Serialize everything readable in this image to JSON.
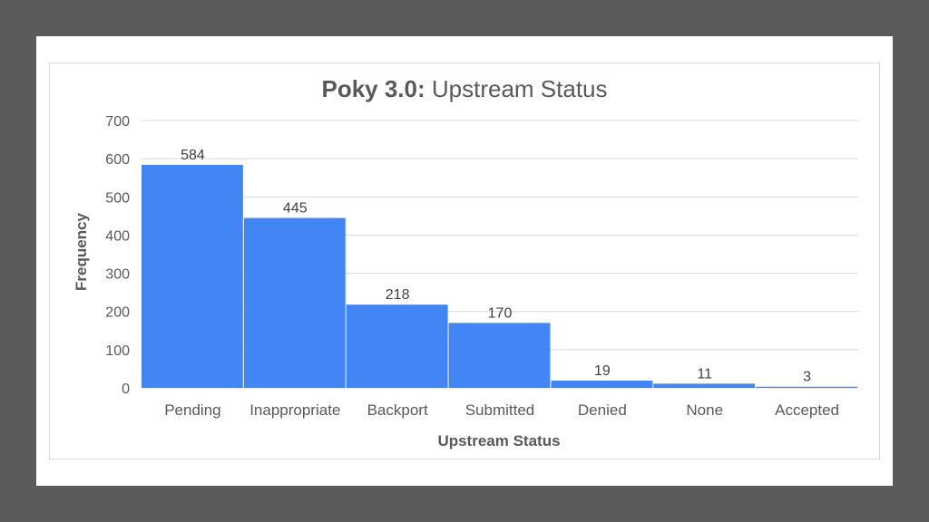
{
  "colors": {
    "background": "#5b5b5b",
    "bar": "#4285f4",
    "gridline": "#d9d9d9",
    "text": "#595959"
  },
  "chart_data": {
    "type": "bar",
    "title_bold": "Poky 3.0:",
    "title_rest": " Upstream Status",
    "xlabel": "Upstream Status",
    "ylabel": "Frequency",
    "categories": [
      "Pending",
      "Inappropriate",
      "Backport",
      "Submitted",
      "Denied",
      "None",
      "Accepted"
    ],
    "values": [
      584,
      445,
      218,
      170,
      19,
      11,
      3
    ],
    "data_labels": [
      "584",
      "445",
      "218",
      "170",
      "19",
      "11",
      "3"
    ],
    "ylim": [
      0,
      700
    ],
    "yticks": [
      "0",
      "100",
      "200",
      "300",
      "400",
      "500",
      "600",
      "700"
    ],
    "grid": true,
    "legend": "none"
  }
}
